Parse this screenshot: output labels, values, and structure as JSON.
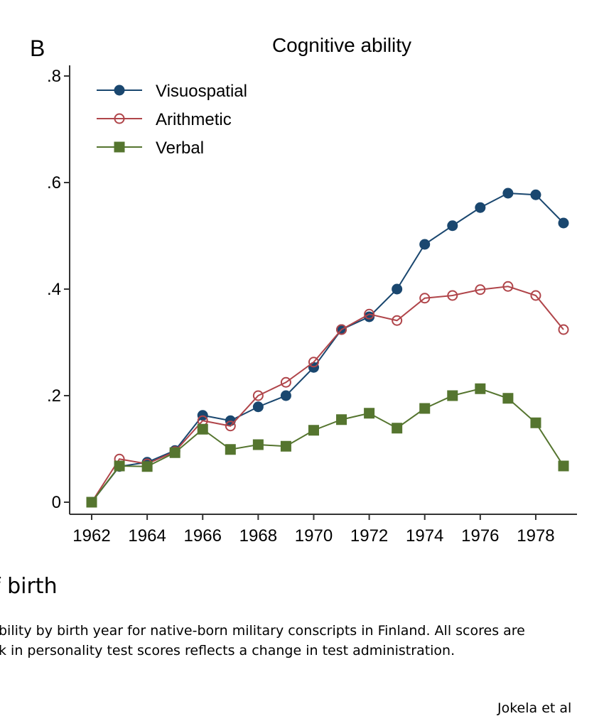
{
  "chart_data": {
    "type": "line",
    "panel_label": "B",
    "title": "Cognitive ability",
    "x": [
      1962,
      1963,
      1964,
      1965,
      1966,
      1967,
      1968,
      1969,
      1970,
      1971,
      1972,
      1973,
      1974,
      1975,
      1976,
      1977,
      1978,
      1979
    ],
    "xticks": [
      "1962",
      "1964",
      "1966",
      "1968",
      "1970",
      "1972",
      "1974",
      "1976",
      "1978"
    ],
    "yticks": [
      "0",
      ".2",
      ".4",
      ".6",
      ".8"
    ],
    "ylim": [
      0,
      0.8
    ],
    "xlim": [
      1962,
      1979
    ],
    "grid": false,
    "legend_position": "top-left",
    "series": [
      {
        "name": "Visuospatial",
        "color": "#1a476f",
        "marker": "filled-circle",
        "values": [
          0,
          0.067,
          0.075,
          0.097,
          0.163,
          0.153,
          0.179,
          0.2,
          0.253,
          0.324,
          0.348,
          0.4,
          0.484,
          0.519,
          0.553,
          0.58,
          0.577,
          0.524
        ]
      },
      {
        "name": "Arithmetic",
        "color": "#b0454a",
        "marker": "hollow-circle",
        "values": [
          0,
          0.081,
          0.072,
          0.095,
          0.153,
          0.143,
          0.2,
          0.225,
          0.263,
          0.324,
          0.353,
          0.341,
          0.383,
          0.388,
          0.399,
          0.405,
          0.388,
          0.324
        ]
      },
      {
        "name": "Verbal",
        "color": "#55752f",
        "marker": "filled-square",
        "values": [
          0,
          0.068,
          0.067,
          0.093,
          0.137,
          0.099,
          0.108,
          0.105,
          0.135,
          0.155,
          0.167,
          0.139,
          0.176,
          0.2,
          0.213,
          0.195,
          0.149,
          0.068
        ]
      }
    ]
  },
  "xlabel_fragment": "f birth",
  "caption": {
    "line1": "bility by birth year for native-born military conscripts in Finland. All scores are",
    "line2": "k in personality test scores reflects a change in test administration."
  },
  "credit": "Jokela et al"
}
